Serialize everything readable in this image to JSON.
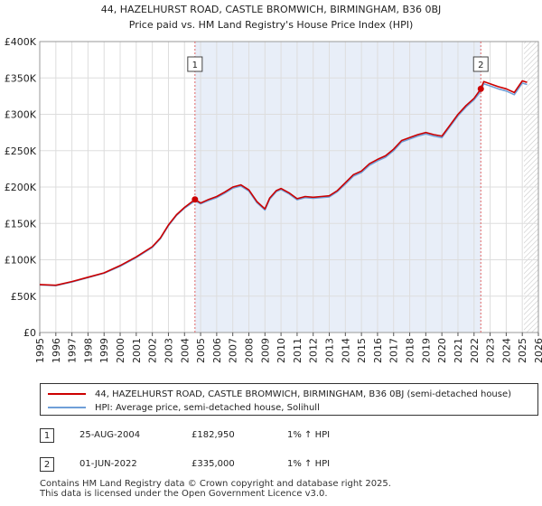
{
  "chart_data": {
    "type": "line",
    "title": "44, HAZELHURST ROAD, CASTLE BROMWICH, BIRMINGHAM, B36 0BJ",
    "subtitle": "Price paid vs. HM Land Registry's House Price Index (HPI)",
    "xlim": [
      1995,
      2026
    ],
    "ylim": [
      0,
      400000
    ],
    "yticks": [
      {
        "value": 0,
        "label": "£0"
      },
      {
        "value": 50000,
        "label": "£50K"
      },
      {
        "value": 100000,
        "label": "£100K"
      },
      {
        "value": 150000,
        "label": "£150K"
      },
      {
        "value": 200000,
        "label": "£200K"
      },
      {
        "value": 250000,
        "label": "£250K"
      },
      {
        "value": 300000,
        "label": "£300K"
      },
      {
        "value": 350000,
        "label": "£350K"
      },
      {
        "value": 400000,
        "label": "£400K"
      }
    ],
    "xticks": [
      "1995",
      "1996",
      "1997",
      "1998",
      "1999",
      "2000",
      "2001",
      "2002",
      "2003",
      "2004",
      "2005",
      "2006",
      "2007",
      "2008",
      "2009",
      "2010",
      "2011",
      "2012",
      "2013",
      "2014",
      "2015",
      "2016",
      "2017",
      "2018",
      "2019",
      "2020",
      "2021",
      "2022",
      "2023",
      "2024",
      "2025",
      "2026"
    ],
    "grid": true,
    "shaded_region": [
      2004.65,
      2022.42
    ],
    "future_hatch_from": 2025.1,
    "series": [
      {
        "name": "44, HAZELHURST ROAD, CASTLE BROMWICH, BIRMINGHAM, B36 0BJ (semi-detached house)",
        "color": "#cc0000",
        "x": [
          1995.0,
          1996.0,
          1997.0,
          1998.0,
          1999.0,
          2000.0,
          2001.0,
          2002.0,
          2002.5,
          2003.0,
          2003.5,
          2004.0,
          2004.65,
          2005.0,
          2005.5,
          2006.0,
          2006.5,
          2007.0,
          2007.5,
          2008.0,
          2008.5,
          2009.0,
          2009.3,
          2009.7,
          2010.0,
          2010.5,
          2011.0,
          2011.5,
          2012.0,
          2012.5,
          2013.0,
          2013.5,
          2014.0,
          2014.5,
          2015.0,
          2015.5,
          2016.0,
          2016.5,
          2017.0,
          2017.5,
          2018.0,
          2018.5,
          2019.0,
          2019.5,
          2020.0,
          2020.5,
          2021.0,
          2021.5,
          2022.0,
          2022.42,
          2022.6,
          2023.0,
          2023.5,
          2024.0,
          2024.5,
          2025.0,
          2025.3
        ],
        "values": [
          66000,
          65000,
          70000,
          76000,
          82000,
          92000,
          104000,
          118000,
          130000,
          148000,
          162000,
          172000,
          182950,
          178000,
          183000,
          187000,
          193000,
          200000,
          203000,
          196000,
          180000,
          170000,
          185000,
          195000,
          198000,
          192000,
          184000,
          187000,
          186000,
          187000,
          188000,
          195000,
          206000,
          217000,
          222000,
          232000,
          238000,
          243000,
          252000,
          264000,
          268000,
          272000,
          275000,
          272000,
          270000,
          285000,
          300000,
          312000,
          322000,
          335000,
          345000,
          342000,
          338000,
          335000,
          330000,
          346000,
          344000
        ]
      },
      {
        "name": "HPI: Average price, semi-detached house, Solihull",
        "color": "#6f9fd8",
        "x": [
          1995.0,
          1996.0,
          1997.0,
          1998.0,
          1999.0,
          2000.0,
          2001.0,
          2002.0,
          2002.5,
          2003.0,
          2003.5,
          2004.0,
          2004.65,
          2005.0,
          2005.5,
          2006.0,
          2006.5,
          2007.0,
          2007.5,
          2008.0,
          2008.5,
          2009.0,
          2009.3,
          2009.7,
          2010.0,
          2010.5,
          2011.0,
          2011.5,
          2012.0,
          2012.5,
          2013.0,
          2013.5,
          2014.0,
          2014.5,
          2015.0,
          2015.5,
          2016.0,
          2016.5,
          2017.0,
          2017.5,
          2018.0,
          2018.5,
          2019.0,
          2019.5,
          2020.0,
          2020.5,
          2021.0,
          2021.5,
          2022.0,
          2022.42,
          2022.6,
          2023.0,
          2023.5,
          2024.0,
          2024.5,
          2025.0,
          2025.3
        ],
        "values": [
          65500,
          64500,
          69500,
          75500,
          81500,
          91000,
          103000,
          117000,
          129000,
          147000,
          161000,
          171000,
          181000,
          177000,
          181500,
          185500,
          191500,
          198500,
          201500,
          194500,
          178500,
          168500,
          183500,
          193500,
          196500,
          190500,
          182500,
          185500,
          184500,
          185500,
          186500,
          193500,
          204000,
          215000,
          220000,
          230000,
          236000,
          241000,
          250000,
          262000,
          266000,
          270000,
          273000,
          270000,
          268000,
          283000,
          298000,
          310000,
          320000,
          331700,
          342000,
          339000,
          335000,
          332000,
          327000,
          343000,
          341000
        ]
      }
    ],
    "annotations": [
      {
        "label": "1",
        "x": 2004.65,
        "value": 182950
      },
      {
        "label": "2",
        "x": 2022.42,
        "value": 335000
      }
    ],
    "legend_position": "below"
  },
  "legend": {
    "property_label": "44, HAZELHURST ROAD, CASTLE BROMWICH, BIRMINGHAM, B36 0BJ (semi-detached house)",
    "hpi_label": "HPI: Average price, semi-detached house, Solihull",
    "property_color": "#cc0000",
    "hpi_color": "#6f9fd8"
  },
  "sales": [
    {
      "num": "1",
      "date": "25-AUG-2004",
      "price": "£182,950",
      "hpi": "1% ↑ HPI"
    },
    {
      "num": "2",
      "date": "01-JUN-2022",
      "price": "£335,000",
      "hpi": "1% ↑ HPI"
    }
  ],
  "footer": {
    "line1": "Contains HM Land Registry data © Crown copyright and database right 2025.",
    "line2": "This data is licensed under the Open Government Licence v3.0."
  }
}
